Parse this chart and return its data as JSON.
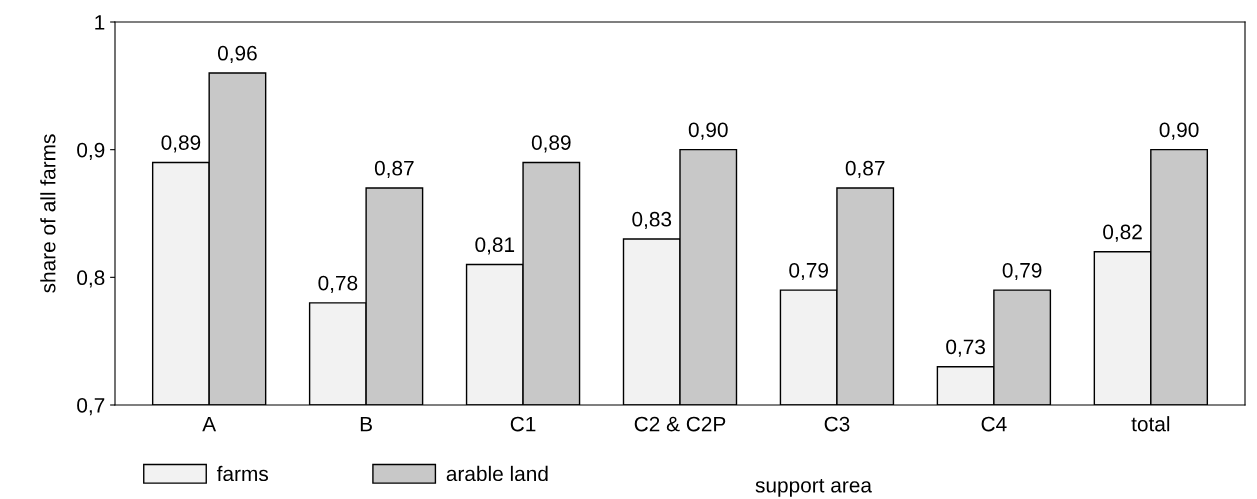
{
  "chart_data": {
    "type": "bar",
    "ylabel": "share of all farms",
    "categories": [
      "A",
      "B",
      "C1",
      "C2 & C2P",
      "C3",
      "C4",
      "total"
    ],
    "series": [
      {
        "name": "farms",
        "color": "#f2f2f2",
        "values": [
          0.89,
          0.78,
          0.81,
          0.83,
          0.79,
          0.73,
          0.82
        ],
        "value_labels": [
          "0,89",
          "0,78",
          "0,81",
          "0,83",
          "0,79",
          "0,73",
          "0,82"
        ]
      },
      {
        "name": "arable land",
        "color": "#c8c8c8",
        "values": [
          0.96,
          0.87,
          0.89,
          0.9,
          0.87,
          0.79,
          0.9
        ],
        "value_labels": [
          "0,96",
          "0,87",
          "0,89",
          "0,90",
          "0,87",
          "0,79",
          "0,90"
        ]
      }
    ],
    "annotations": [
      "support area"
    ],
    "ylim": [
      0.7,
      1
    ],
    "yticks": [
      {
        "value": 0.7,
        "label": "0,7"
      },
      {
        "value": 0.8,
        "label": "0,8"
      },
      {
        "value": 0.9,
        "label": "0,9"
      },
      1
    ],
    "grid": false,
    "legend": "bottom left"
  }
}
